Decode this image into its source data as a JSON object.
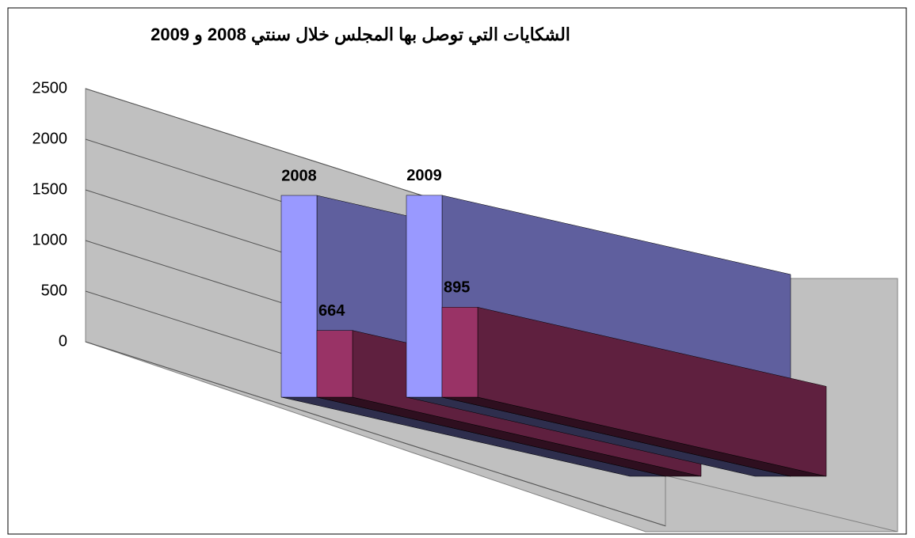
{
  "chart_data": {
    "type": "bar3d",
    "title": "الشكايات التي توصل بها المجلس خلال سنتي 2008 و  2009",
    "categories": [
      null,
      null
    ],
    "series": [
      {
        "color": "#9999ff",
        "values": [
          2008,
          2009
        ]
      },
      {
        "color": "#993366",
        "values": [
          664,
          895
        ]
      }
    ],
    "ylim": [
      0,
      2500
    ],
    "yticks": [
      0,
      500,
      1000,
      1500,
      2000,
      2500
    ],
    "grid": true
  }
}
